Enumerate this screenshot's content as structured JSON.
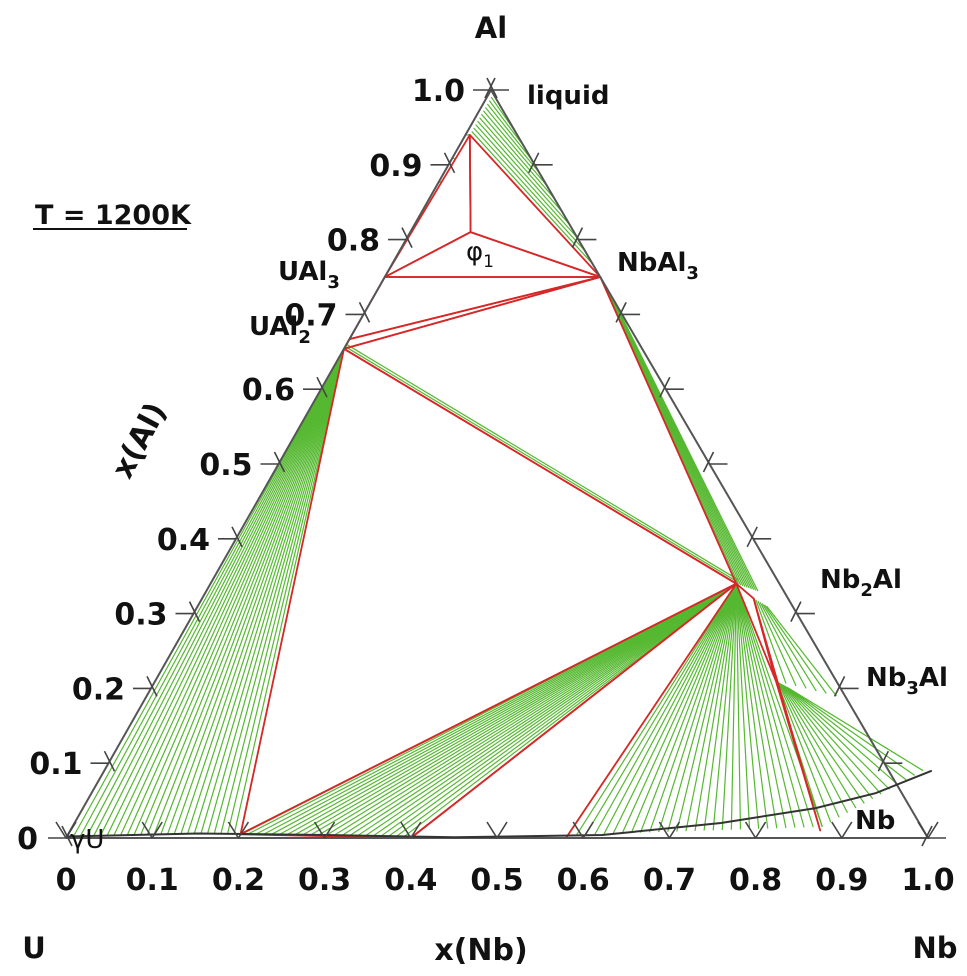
{
  "chart_data": {
    "type": "ternary_phase_diagram",
    "condition_label": "T = 1200K",
    "corners": {
      "top": "Al",
      "left": "U",
      "right": "Nb"
    },
    "axes": {
      "left_title": "x(Al)",
      "bottom_title": "x(Nb)",
      "ticks": [
        "0",
        "0.1",
        "0.2",
        "0.3",
        "0.4",
        "0.5",
        "0.6",
        "0.7",
        "0.8",
        "0.9",
        "1.0"
      ],
      "range": [
        0,
        1
      ]
    },
    "phases": [
      {
        "name": "liquid",
        "x_nb": 0.005,
        "x_al": 0.995
      },
      {
        "name": "UAl3",
        "x_nb": 0.0,
        "x_al": 0.75
      },
      {
        "name": "UAl2",
        "x_nb": 0.0,
        "x_al": 0.667
      },
      {
        "name": "NbAl3",
        "x_nb": 0.25,
        "x_al": 0.75
      },
      {
        "name": "Nb2Al",
        "x_nb": 0.615,
        "x_al": 0.32
      },
      {
        "name": "Nb3Al",
        "x_nb": 0.72,
        "x_al": 0.21
      },
      {
        "name": "φ1",
        "x_nb": 0.07,
        "x_al": 0.81
      },
      {
        "name": "γU",
        "x_nb": 0.0,
        "x_al": 0.0
      },
      {
        "name": "Nb",
        "x_nb": 1.0,
        "x_al": 0.0
      }
    ],
    "phase_labels": {
      "liquid": "liquid",
      "NbAl3": [
        "NbAl",
        "3"
      ],
      "UAl3": [
        "UAl",
        "3"
      ],
      "UAl2": [
        "UAl",
        "2"
      ],
      "Nb2Al": [
        "Nb",
        "2",
        "Al"
      ],
      "Nb3Al": [
        "Nb",
        "3",
        "Al"
      ],
      "phi1": [
        "φ",
        "1"
      ],
      "gammaU": "γU",
      "Nb": "Nb"
    },
    "three_phase_triangles": [
      [
        [
          0.005,
          0.94
        ],
        [
          0.25,
          0.75
        ],
        [
          0.07,
          0.81
        ]
      ],
      [
        [
          0.005,
          0.94
        ],
        [
          0.0,
          0.75
        ],
        [
          0.07,
          0.81
        ]
      ],
      [
        [
          0.0,
          0.75
        ],
        [
          0.25,
          0.75
        ],
        [
          0.07,
          0.81
        ]
      ],
      [
        [
          0.0,
          0.75
        ],
        [
          0.25,
          0.75
        ],
        [
          0.0,
          0.667
        ]
      ],
      [
        [
          0.0,
          0.667
        ],
        [
          0.25,
          0.75
        ],
        [
          0.0,
          0.654
        ]
      ],
      [
        [
          0.0,
          0.654
        ],
        [
          0.25,
          0.75
        ],
        [
          0.61,
          0.34
        ]
      ],
      [
        [
          0.0,
          0.654
        ],
        [
          0.61,
          0.34
        ],
        [
          0.2,
          0.005
        ]
      ],
      [
        [
          0.61,
          0.34
        ],
        [
          0.2,
          0.005
        ],
        [
          0.4,
          0.0
        ]
      ],
      [
        [
          0.61,
          0.34
        ],
        [
          0.4,
          0.0
        ],
        [
          0.58,
          0.0
        ]
      ],
      [
        [
          0.61,
          0.34
        ],
        [
          0.64,
          0.32
        ],
        [
          0.72,
          0.21
        ]
      ],
      [
        [
          0.72,
          0.21
        ],
        [
          0.64,
          0.32
        ],
        [
          0.87,
          0.01
        ]
      ]
    ],
    "edge_line_color": "#d62828",
    "tie_line_color": "#55b830",
    "boundary_color": "#333333"
  }
}
